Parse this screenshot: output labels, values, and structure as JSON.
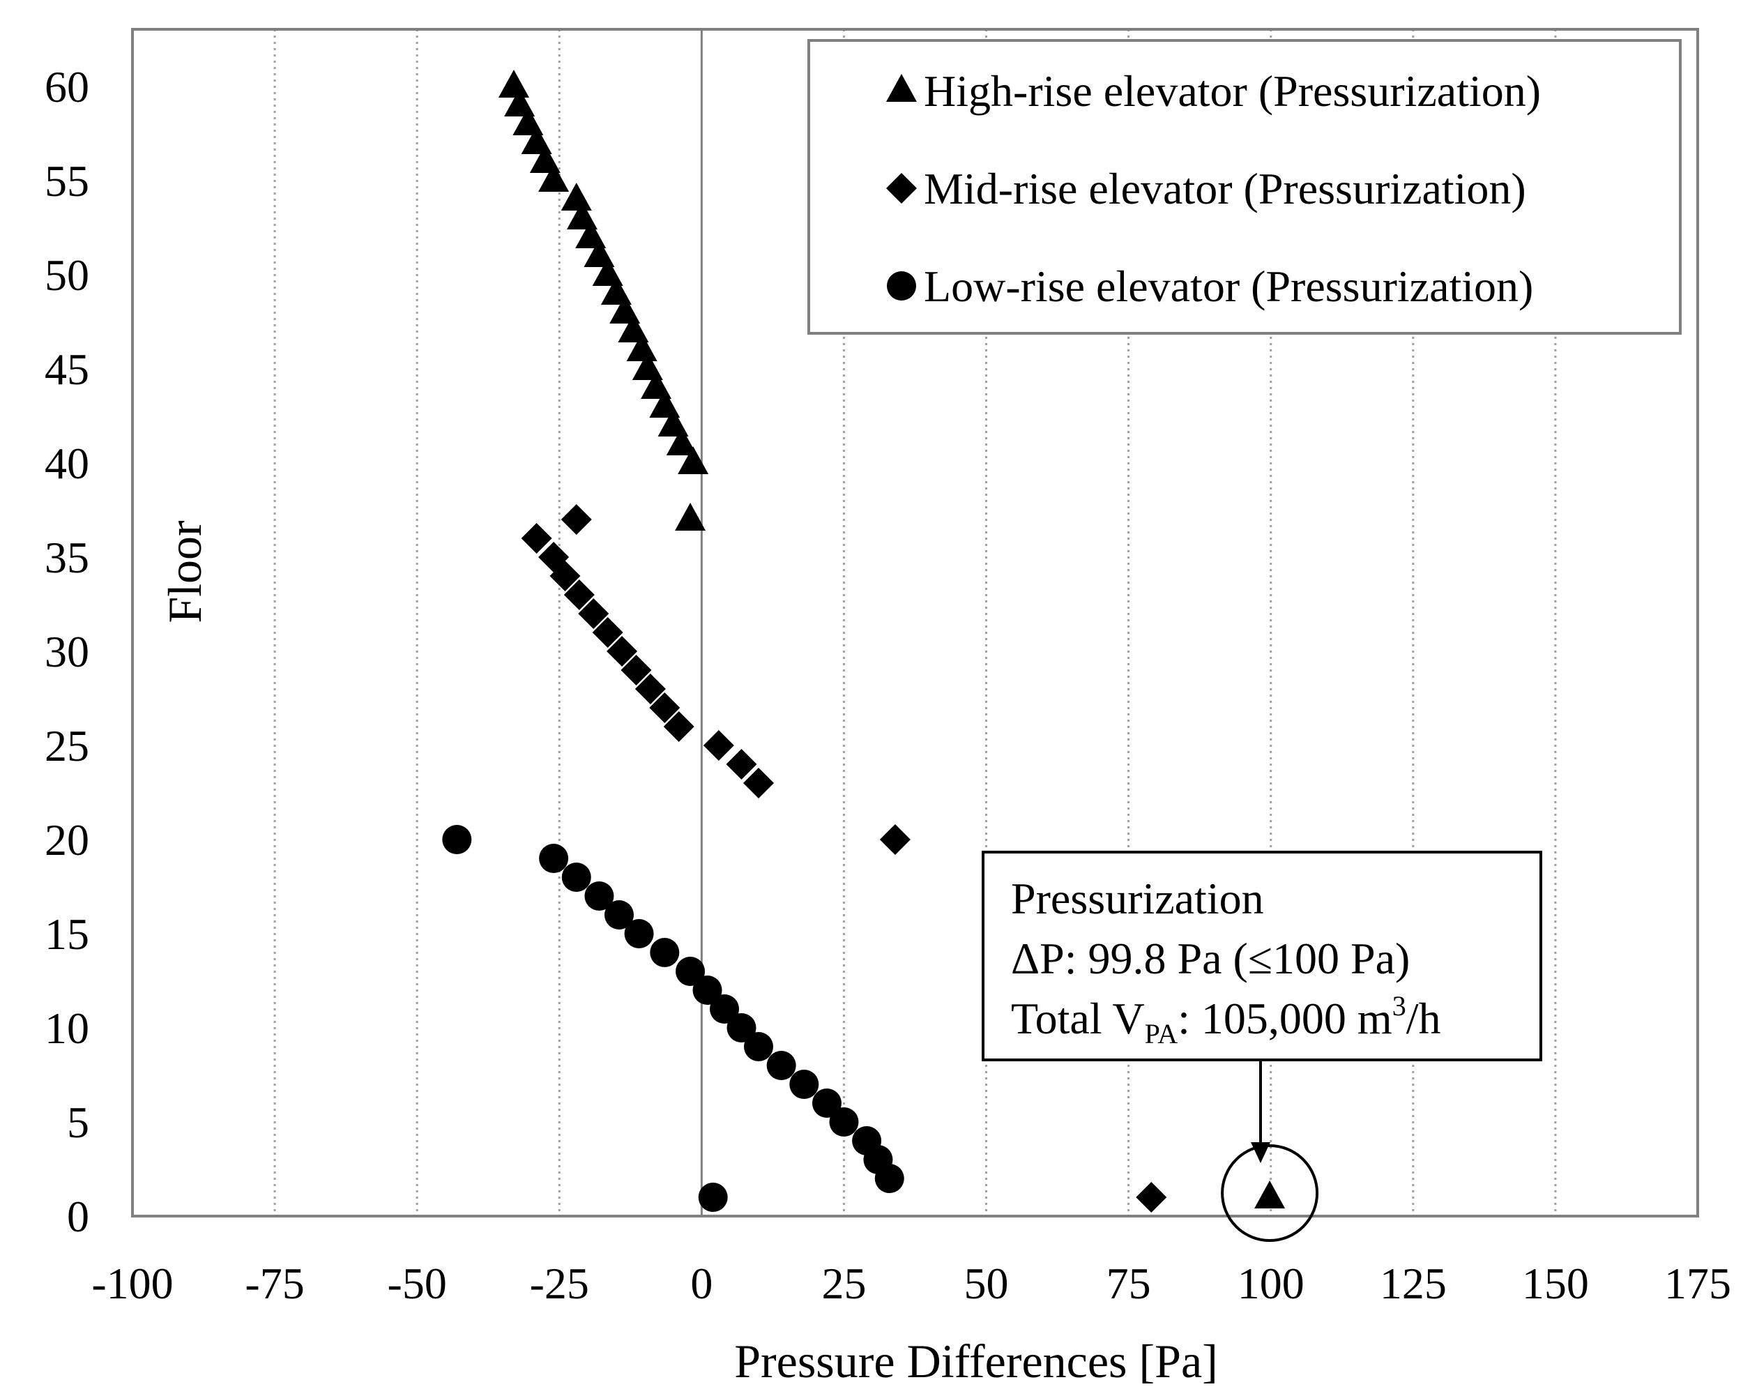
{
  "chart_data": {
    "type": "scatter",
    "title": "",
    "xlabel": "Pressure Differences [Pa]",
    "ylabel": "Floor",
    "xlim": [
      -100,
      175
    ],
    "ylim": [
      0,
      62
    ],
    "x_ticks": [
      "-100",
      "-75",
      "-50",
      "-25",
      "0",
      "25",
      "50",
      "75",
      "100",
      "125",
      "150",
      "175"
    ],
    "y_ticks": [
      "0",
      "5",
      "10",
      "15",
      "20",
      "25",
      "30",
      "35",
      "40",
      "45",
      "50",
      "55",
      "60"
    ],
    "grid": "vertical dotted",
    "legend_position": "top-right",
    "series": [
      {
        "name": "High-rise elevator (Pressurization)",
        "marker": "triangle",
        "points": [
          [
            -33,
            60
          ],
          [
            -32,
            59
          ],
          [
            -30.5,
            58
          ],
          [
            -29,
            57
          ],
          [
            -27.5,
            56
          ],
          [
            -26,
            55
          ],
          [
            -22,
            54
          ],
          [
            -21,
            53
          ],
          [
            -19.5,
            52
          ],
          [
            -18,
            51
          ],
          [
            -16.5,
            50
          ],
          [
            -15,
            49
          ],
          [
            -13.5,
            48
          ],
          [
            -12,
            47
          ],
          [
            -10.5,
            46
          ],
          [
            -9.5,
            45
          ],
          [
            -8,
            44
          ],
          [
            -6.5,
            43
          ],
          [
            -5,
            42
          ],
          [
            -3.5,
            41
          ],
          [
            -1.5,
            40
          ],
          [
            -2,
            37
          ],
          [
            99.8,
            1
          ]
        ]
      },
      {
        "name": "Mid-rise elevator (Pressurization)",
        "marker": "diamond",
        "points": [
          [
            -22,
            37
          ],
          [
            -29,
            36
          ],
          [
            -26,
            35
          ],
          [
            -24,
            34
          ],
          [
            -21.5,
            33
          ],
          [
            -19,
            32
          ],
          [
            -16.5,
            31
          ],
          [
            -14,
            30
          ],
          [
            -11.5,
            29
          ],
          [
            -9,
            28
          ],
          [
            -6.5,
            27
          ],
          [
            -4,
            26
          ],
          [
            3,
            25
          ],
          [
            7,
            24
          ],
          [
            10,
            23
          ],
          [
            34,
            20
          ],
          [
            79,
            1
          ]
        ]
      },
      {
        "name": "Low-rise elevator (Pressurization)",
        "marker": "circle",
        "points": [
          [
            -43,
            20
          ],
          [
            -26,
            19
          ],
          [
            -22,
            18
          ],
          [
            -18,
            17
          ],
          [
            -14.5,
            16
          ],
          [
            -11,
            15
          ],
          [
            -6.5,
            14
          ],
          [
            -2,
            13
          ],
          [
            1,
            12
          ],
          [
            4,
            11
          ],
          [
            7,
            10
          ],
          [
            10,
            9
          ],
          [
            14,
            8
          ],
          [
            18,
            7
          ],
          [
            22,
            6
          ],
          [
            25,
            5
          ],
          [
            29,
            4
          ],
          [
            31,
            3
          ],
          [
            33,
            2
          ],
          [
            2,
            1
          ]
        ]
      }
    ],
    "annotation": {
      "line1": "Pressurization",
      "line2": "ΔP:  99.8 Pa  (≤100 Pa)",
      "line3_prefix": "Total V",
      "line3_sub": "PA",
      "line3_mid": ": 105,000  m",
      "line3_sup": "3",
      "line3_suffix": "/h",
      "target_point": [
        99.8,
        1
      ]
    }
  },
  "colors": {
    "marker": "#000000",
    "grid": "#a0a0a0",
    "zero_line": "#808080",
    "frame": "#808080"
  }
}
